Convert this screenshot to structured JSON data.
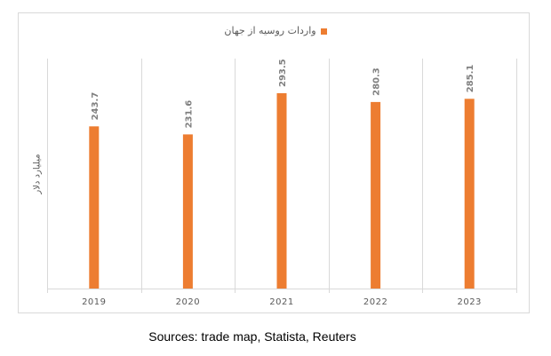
{
  "chart_data": {
    "type": "bar",
    "categories": [
      "2019",
      "2020",
      "2021",
      "2022",
      "2023"
    ],
    "series": [
      {
        "name": "واردات روسیه از جهان",
        "values": [
          243.7,
          231.6,
          293.5,
          280.3,
          285.1
        ],
        "color": "#ed7d31"
      }
    ],
    "ylabel": "میلیارد دلار",
    "ylim": [
      0,
      350
    ],
    "grid": "vertical category separators",
    "legend_position": "top",
    "data_labels": [
      "243.7",
      "231.6",
      "293.5",
      "280.3",
      "285.1"
    ]
  },
  "source_text": "Sources: trade map, Statista, Reuters"
}
